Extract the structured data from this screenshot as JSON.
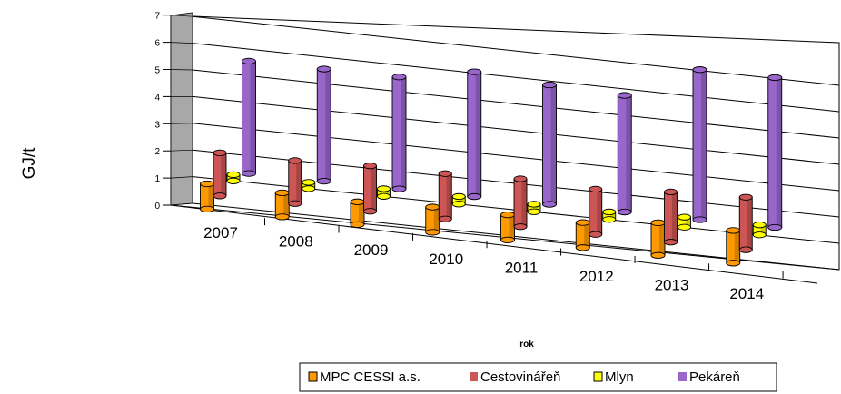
{
  "chart_data": {
    "type": "bar",
    "categories": [
      "2007",
      "2008",
      "2009",
      "2010",
      "2011",
      "2012",
      "2013",
      "2014"
    ],
    "series": [
      {
        "name": "MPC CESSI a.s.",
        "color": "#ff9900",
        "values": [
          1.0,
          0.95,
          0.9,
          1.0,
          1.0,
          1.0,
          1.3,
          1.3
        ]
      },
      {
        "name": "Cestovinářeň",
        "color": "#cc5555",
        "values": [
          1.7,
          1.7,
          1.8,
          1.8,
          1.9,
          1.8,
          2.0,
          2.1
        ]
      },
      {
        "name": "Mlyn",
        "color": "#ffff00",
        "values": [
          0.25,
          0.25,
          0.3,
          0.3,
          0.3,
          0.3,
          0.4,
          0.4
        ]
      },
      {
        "name": "Pekáreň",
        "color": "#9966cc",
        "values": [
          4.3,
          4.3,
          4.3,
          4.8,
          4.6,
          4.5,
          5.8,
          5.8
        ]
      }
    ],
    "xlabel": "rok",
    "ylabel": "GJ/t",
    "ylim": [
      0,
      7
    ],
    "yticks": [
      "0",
      "1",
      "2",
      "3",
      "4",
      "5",
      "6",
      "7"
    ],
    "grid": true,
    "legend_position": "bottom"
  }
}
